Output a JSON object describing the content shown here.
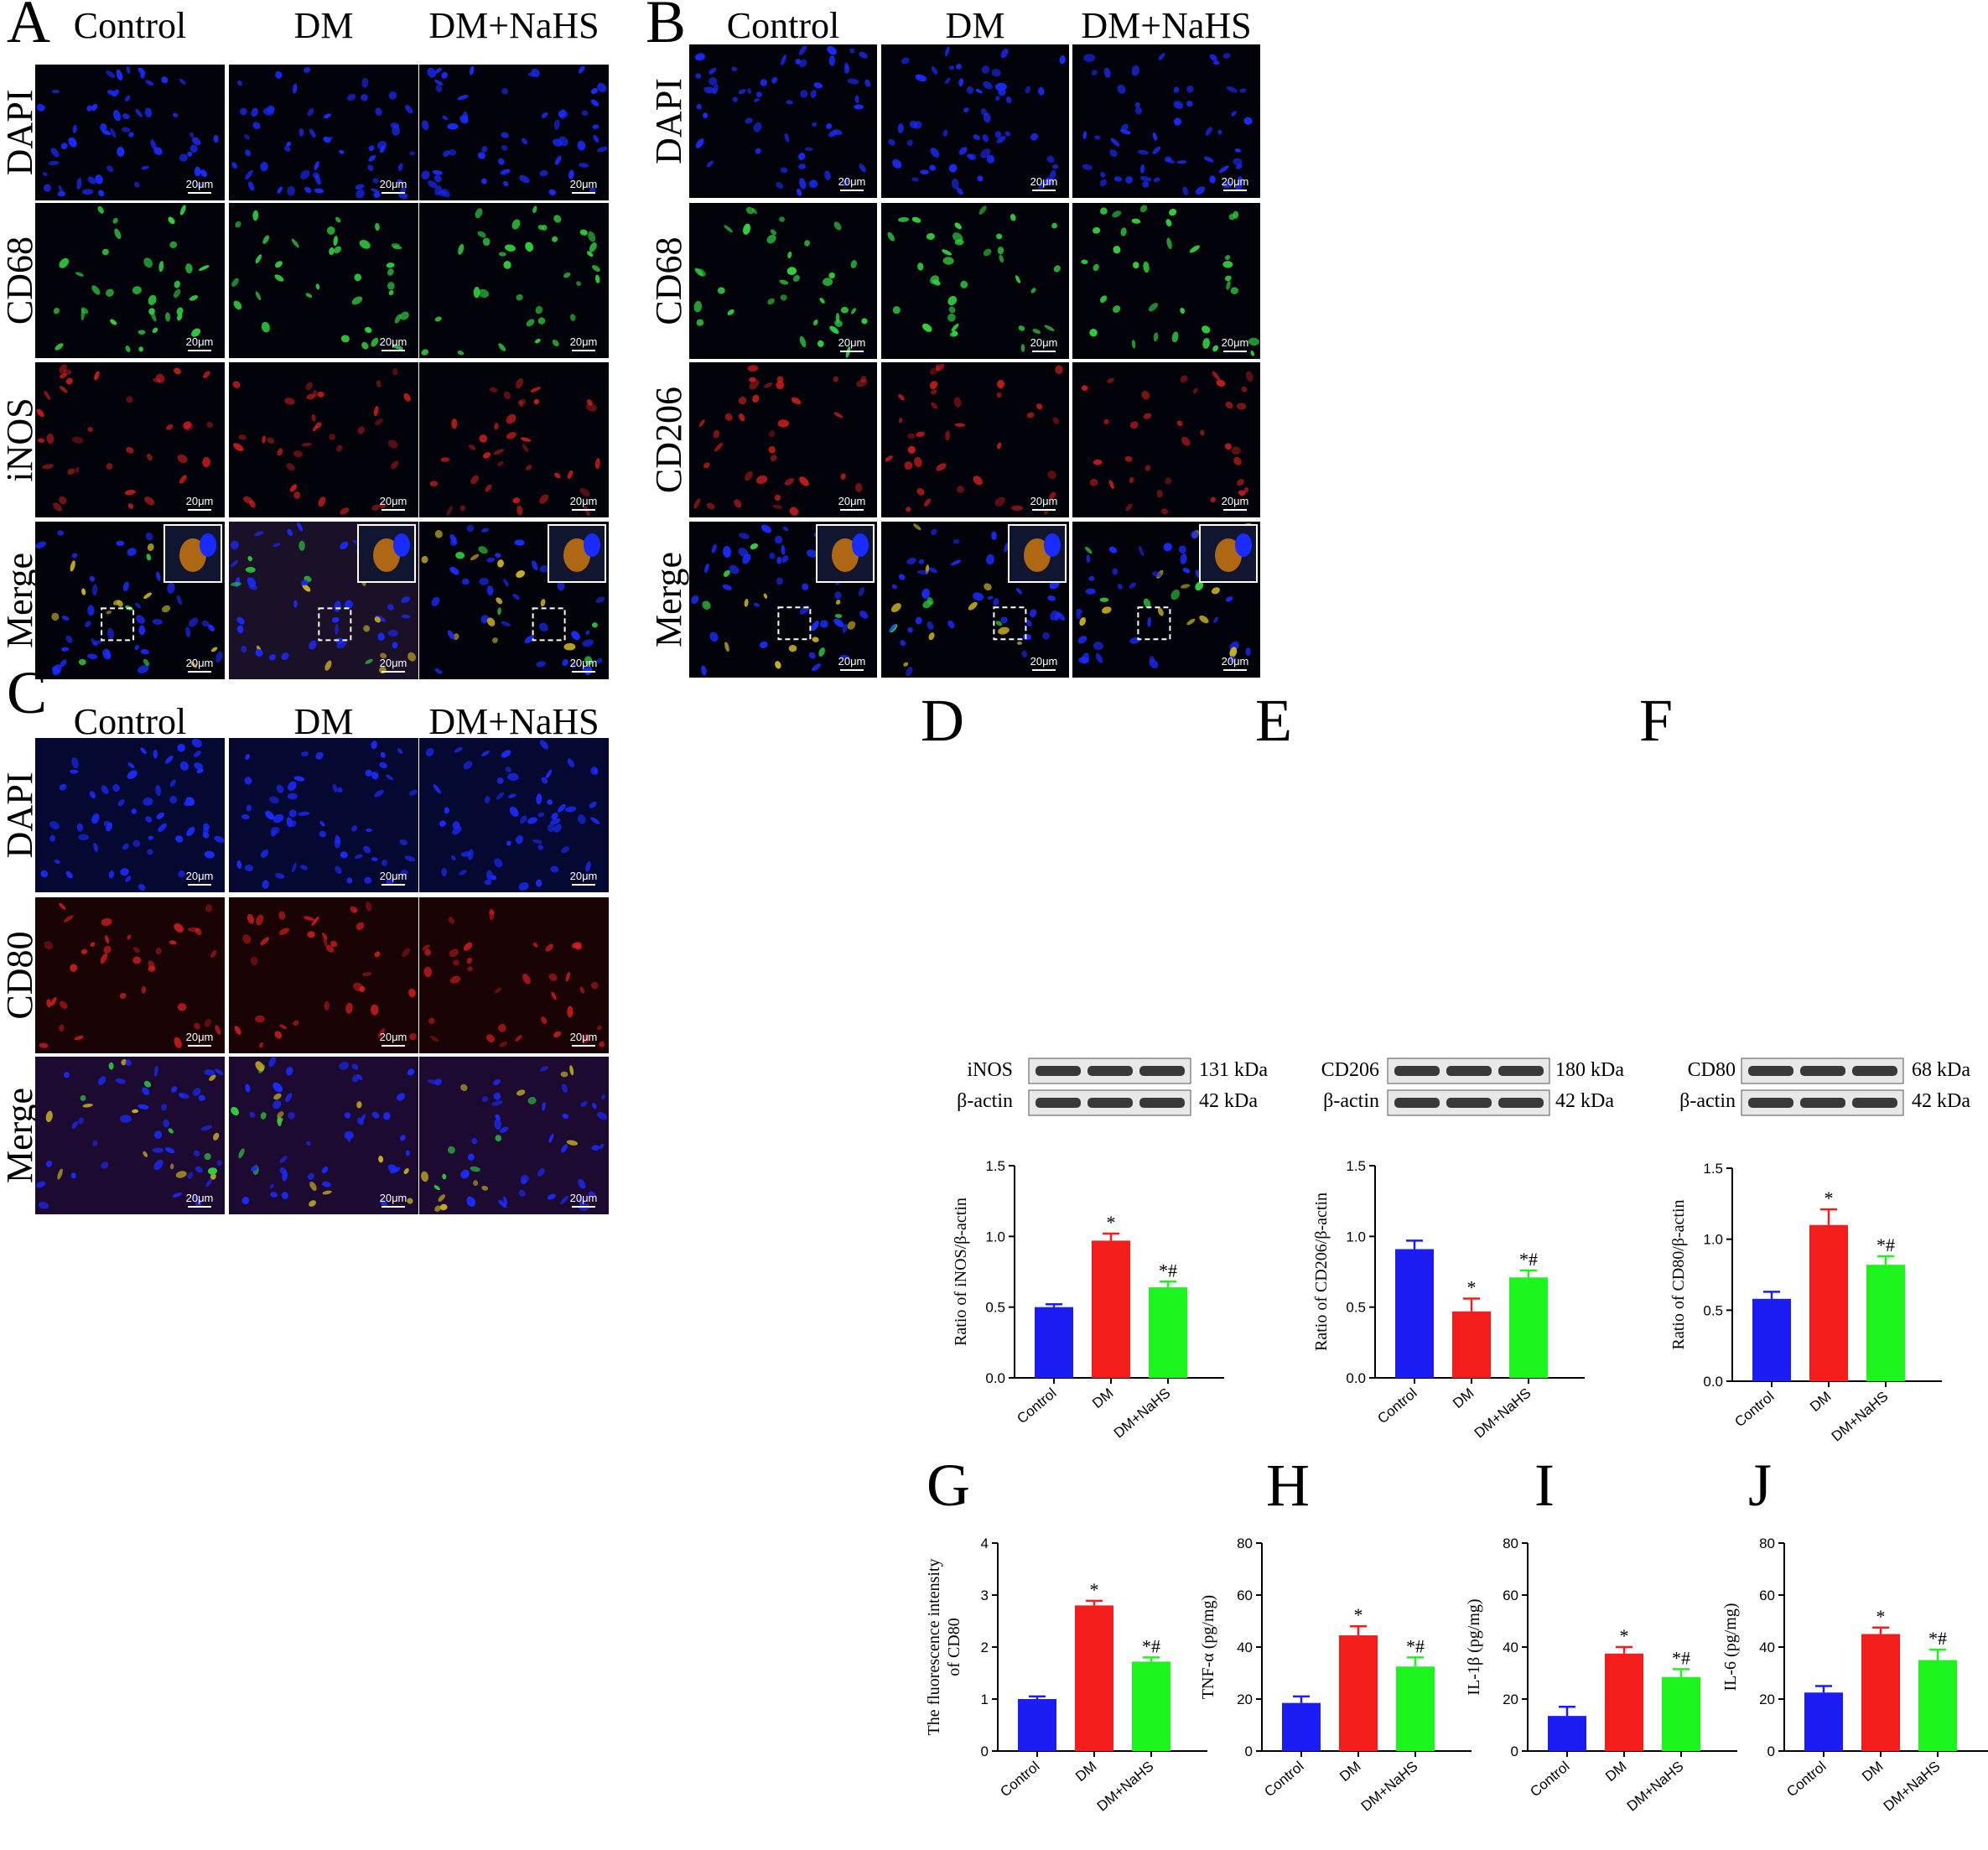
{
  "panels": {
    "A": {
      "letter": "A",
      "columns": [
        "Control",
        "DM",
        "DM+NaHS"
      ],
      "rows": [
        "DAPI",
        "CD68",
        "iNOS",
        "Merge"
      ],
      "scale_bar": "20μm"
    },
    "B": {
      "letter": "B",
      "columns": [
        "Control",
        "DM",
        "DM+NaHS"
      ],
      "rows": [
        "DAPI",
        "CD68",
        "CD206",
        "Merge"
      ],
      "scale_bar": "20μm"
    },
    "C": {
      "letter": "C",
      "columns": [
        "Control",
        "DM",
        "DM+NaHS"
      ],
      "rows": [
        "DAPI",
        "CD80",
        "Merge"
      ],
      "scale_bar": "20μm"
    }
  },
  "blots": {
    "D": {
      "letter": "D",
      "target": "iNOS",
      "loading": "β-actin",
      "target_kda": "131 kDa",
      "loading_kda": "42 kDa"
    },
    "E": {
      "letter": "E",
      "target": "CD206",
      "loading": "β-actin",
      "target_kda": "180 kDa",
      "loading_kda": "42 kDa"
    },
    "F": {
      "letter": "F",
      "target": "CD80",
      "loading": "β-actin",
      "target_kda": "68 kDa",
      "loading_kda": "42 kDa"
    }
  },
  "colors": {
    "control": "#1c1cf5",
    "dm": "#f51c1c",
    "nahs": "#1cf51c",
    "dapi": "#1a2bff",
    "cd68": "#2fd040",
    "red_marker": "#e02020"
  },
  "chart_data": [
    {
      "id": "D",
      "letter": "D",
      "type": "bar",
      "categories": [
        "Control",
        "DM",
        "DM+NaHS"
      ],
      "values": [
        0.5,
        0.97,
        0.64
      ],
      "errors": [
        0.02,
        0.05,
        0.04
      ],
      "annotations": [
        "",
        "*",
        "*#"
      ],
      "ylabel": "Ratio of iNOS/β-actin",
      "ylim": [
        0,
        1.5
      ],
      "yticks": [
        "0.0",
        "0.5",
        "1.0",
        "1.5"
      ]
    },
    {
      "id": "E",
      "letter": "E",
      "type": "bar",
      "categories": [
        "Control",
        "DM",
        "DM+NaHS"
      ],
      "values": [
        0.91,
        0.47,
        0.71
      ],
      "errors": [
        0.06,
        0.09,
        0.05
      ],
      "annotations": [
        "",
        "*",
        "*#"
      ],
      "ylabel": "Ratio of CD206/β-actin",
      "ylim": [
        0,
        1.5
      ],
      "yticks": [
        "0.0",
        "0.5",
        "1.0",
        "1.5"
      ]
    },
    {
      "id": "F",
      "letter": "F",
      "type": "bar",
      "categories": [
        "Control",
        "DM",
        "DM+NaHS"
      ],
      "values": [
        0.58,
        1.1,
        0.82
      ],
      "errors": [
        0.05,
        0.11,
        0.06
      ],
      "annotations": [
        "",
        "*",
        "*#"
      ],
      "ylabel": "Ratio of CD80/β-actin",
      "ylim": [
        0,
        1.5
      ],
      "yticks": [
        "0.0",
        "0.5",
        "1.0",
        "1.5"
      ]
    },
    {
      "id": "G",
      "letter": "G",
      "type": "bar",
      "categories": [
        "Control",
        "DM",
        "DM+NaHS"
      ],
      "values": [
        1.0,
        2.8,
        1.72
      ],
      "errors": [
        0.05,
        0.09,
        0.08
      ],
      "annotations": [
        "",
        "*",
        "*#"
      ],
      "ylabel": "The fluorescence intensity\nof CD80",
      "ylim": [
        0,
        4
      ],
      "yticks": [
        "0",
        "1",
        "2",
        "3",
        "4"
      ]
    },
    {
      "id": "H",
      "letter": "H",
      "type": "bar",
      "categories": [
        "Control",
        "DM",
        "DM+NaHS"
      ],
      "values": [
        18.5,
        44.5,
        32.5
      ],
      "errors": [
        2.5,
        3.5,
        3.5
      ],
      "annotations": [
        "",
        "*",
        "*#"
      ],
      "ylabel": "TNF-α (pg/mg)",
      "ylim": [
        0,
        80
      ],
      "yticks": [
        "0",
        "20",
        "40",
        "60",
        "80"
      ]
    },
    {
      "id": "I",
      "letter": "I",
      "type": "bar",
      "categories": [
        "Control",
        "DM",
        "DM+NaHS"
      ],
      "values": [
        13.5,
        37.5,
        28.5
      ],
      "errors": [
        3.5,
        2.5,
        3.0
      ],
      "annotations": [
        "",
        "*",
        "*#"
      ],
      "ylabel": "IL-1β (pg/mg)",
      "ylim": [
        0,
        80
      ],
      "yticks": [
        "0",
        "20",
        "40",
        "60",
        "80"
      ]
    },
    {
      "id": "J",
      "letter": "J",
      "type": "bar",
      "categories": [
        "Control",
        "DM",
        "DM+NaHS"
      ],
      "values": [
        22.5,
        45.0,
        35.0
      ],
      "errors": [
        2.5,
        2.5,
        4.0
      ],
      "annotations": [
        "",
        "*",
        "*#"
      ],
      "ylabel": "IL-6 (pg/mg)",
      "ylim": [
        0,
        80
      ],
      "yticks": [
        "0",
        "20",
        "40",
        "60",
        "80"
      ]
    }
  ]
}
